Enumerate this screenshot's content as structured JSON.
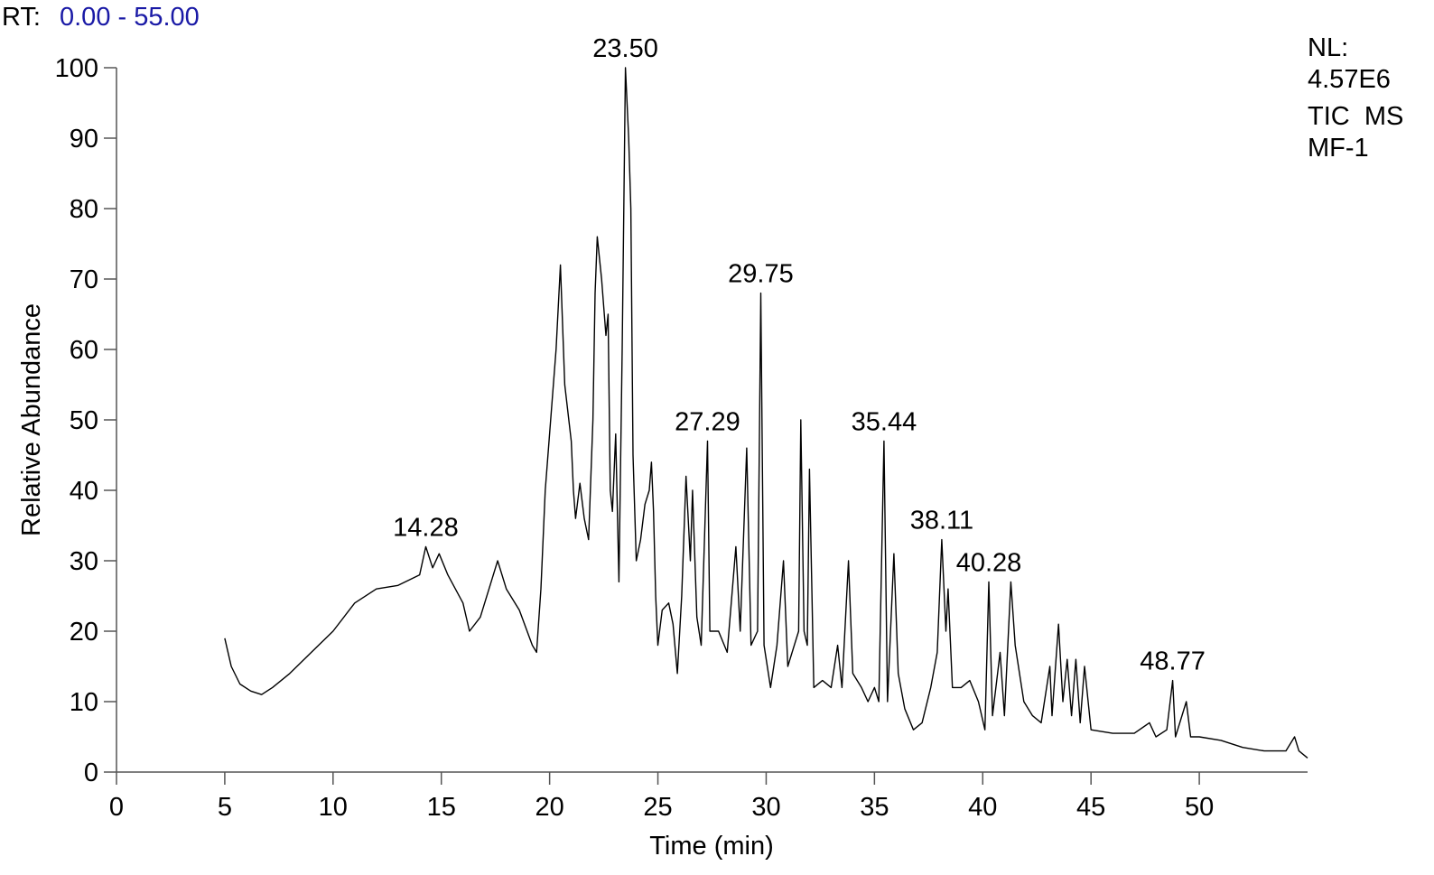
{
  "header": {
    "rt_label": "RT:",
    "rt_range": "0.00 - 55.00"
  },
  "info": {
    "nl_label": "NL:",
    "nl_value": "4.57E6",
    "scan": "TIC  MS",
    "sample": "MF-1"
  },
  "chart_data": {
    "type": "line",
    "x_label": "Time (min)",
    "y_label": "Relative Abundance",
    "xlim": [
      0,
      55
    ],
    "ylim": [
      0,
      100
    ],
    "xticks": [
      0,
      5,
      10,
      15,
      20,
      25,
      30,
      35,
      40,
      45,
      50
    ],
    "yticks": [
      0,
      10,
      20,
      30,
      40,
      50,
      60,
      70,
      80,
      90,
      100
    ],
    "x": [
      5.0,
      5.3,
      5.7,
      6.2,
      6.7,
      7.2,
      8,
      9,
      10,
      11,
      12,
      13,
      14,
      14.28,
      14.6,
      14.9,
      15.3,
      16,
      16.3,
      16.8,
      17.3,
      17.6,
      18,
      18.6,
      19.2,
      19.4,
      19.6,
      19.8,
      20.0,
      20.3,
      20.5,
      20.7,
      21.0,
      21.1,
      21.2,
      21.4,
      21.6,
      21.8,
      22.0,
      22.1,
      22.2,
      22.4,
      22.6,
      22.7,
      22.8,
      22.9,
      23.05,
      23.2,
      23.35,
      23.5,
      23.65,
      23.75,
      23.85,
      24.0,
      24.2,
      24.4,
      24.6,
      24.7,
      24.8,
      24.9,
      25.0,
      25.2,
      25.5,
      25.7,
      25.9,
      26.1,
      26.3,
      26.5,
      26.6,
      26.8,
      27.0,
      27.29,
      27.4,
      27.8,
      28.2,
      28.6,
      28.8,
      29.1,
      29.3,
      29.6,
      29.75,
      29.9,
      30.2,
      30.5,
      30.8,
      31.0,
      31.3,
      31.5,
      31.6,
      31.75,
      31.9,
      32.0,
      32.2,
      32.6,
      33.0,
      33.3,
      33.5,
      33.8,
      34.0,
      34.4,
      34.7,
      35.0,
      35.2,
      35.44,
      35.6,
      35.9,
      36.1,
      36.4,
      36.8,
      37.2,
      37.6,
      37.9,
      38.11,
      38.3,
      38.4,
      38.6,
      39.0,
      39.4,
      39.8,
      40.1,
      40.28,
      40.45,
      40.8,
      41.0,
      41.3,
      41.5,
      41.9,
      42.3,
      42.7,
      43.1,
      43.2,
      43.5,
      43.7,
      43.9,
      44.1,
      44.3,
      44.5,
      44.7,
      45,
      46,
      47,
      47.7,
      48,
      48.5,
      48.77,
      48.9,
      49.4,
      49.6,
      50,
      51,
      52,
      53,
      54,
      54.4,
      54.6,
      55
    ],
    "series": [
      {
        "color": "#000000",
        "values": [
          19,
          15,
          12.5,
          11.5,
          11,
          12,
          14,
          17,
          20,
          24,
          26,
          26.5,
          28,
          32,
          29,
          31,
          28,
          24,
          20,
          22,
          27,
          30,
          26,
          23,
          18,
          17,
          26,
          40,
          48,
          60,
          72,
          55,
          47,
          40,
          36,
          41,
          36,
          33,
          50,
          68,
          76,
          70,
          62,
          65,
          40,
          37,
          48,
          27,
          60,
          100,
          90,
          80,
          45,
          30,
          33,
          38,
          40,
          44,
          37,
          25,
          18,
          23,
          24,
          21,
          14,
          25,
          42,
          30,
          40,
          22,
          18,
          47,
          20,
          20,
          17,
          32,
          20,
          46,
          18,
          20,
          68,
          18,
          12,
          18,
          30,
          15,
          18,
          20,
          50,
          20,
          18,
          43,
          12,
          13,
          12,
          18,
          12,
          30,
          14,
          12,
          10,
          12,
          10,
          47,
          10,
          31,
          14,
          9,
          6,
          7,
          12,
          17,
          33,
          20,
          26,
          12,
          12,
          13,
          10,
          6,
          27,
          8,
          17,
          8,
          27,
          18,
          10,
          8,
          7,
          15,
          8,
          21,
          10,
          16,
          8,
          16,
          7,
          15,
          6,
          5.5,
          5.5,
          7,
          5,
          6,
          13,
          5,
          10,
          5,
          5,
          4.5,
          3.5,
          3,
          3,
          5,
          3,
          2
        ]
      }
    ],
    "peaks": [
      {
        "x": 14.28,
        "label": "14.28"
      },
      {
        "x": 23.5,
        "label": "23.50"
      },
      {
        "x": 27.29,
        "label": "27.29"
      },
      {
        "x": 29.75,
        "label": "29.75"
      },
      {
        "x": 35.44,
        "label": "35.44"
      },
      {
        "x": 38.11,
        "label": "38.11"
      },
      {
        "x": 40.28,
        "label": "40.28"
      },
      {
        "x": 48.77,
        "label": "48.77"
      }
    ]
  }
}
